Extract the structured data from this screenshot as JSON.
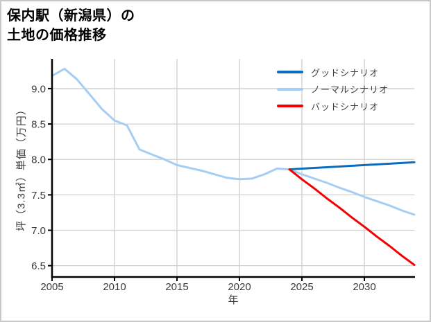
{
  "title": {
    "line1": "保内駅（新潟県）の",
    "line2": "土地の価格推移"
  },
  "colors": {
    "background": "#ffffff",
    "page_border": "#c8c8c8",
    "grid": "#cfcfcf",
    "spine": "#000000",
    "tick_label": "#3a3a3a",
    "legend_text": "#404040",
    "good_blue": "#0b6cbe",
    "normal_light_blue": "#a6cdf2",
    "bad_red": "#f40000"
  },
  "chart_data": {
    "type": "line",
    "title": "保内駅（新潟県）の土地の価格推移",
    "xlabel": "年",
    "ylabel": "坪（3.3㎡）単価（万円）",
    "xlim": [
      2005,
      2034
    ],
    "ylim": [
      6.35,
      9.42
    ],
    "xticks": [
      2005,
      2010,
      2015,
      2020,
      2025,
      2030
    ],
    "yticks": [
      6.5,
      7.0,
      7.5,
      8.0,
      8.5,
      9.0
    ],
    "grid": true,
    "legend_position": "upper-right",
    "series": [
      {
        "name": "グッドシナリオ",
        "slug": "good-scenario",
        "color": "#0b6cbe",
        "x": [
          2024,
          2025,
          2026,
          2027,
          2028,
          2029,
          2030,
          2031,
          2032,
          2033,
          2034
        ],
        "values": [
          7.86,
          7.87,
          7.88,
          7.89,
          7.9,
          7.91,
          7.92,
          7.93,
          7.94,
          7.95,
          7.96
        ]
      },
      {
        "name": "ノーマルシナリオ",
        "slug": "normal-scenario",
        "color": "#a6cdf2",
        "x": [
          2005,
          2006,
          2007,
          2008,
          2009,
          2010,
          2011,
          2012,
          2013,
          2014,
          2015,
          2016,
          2017,
          2018,
          2019,
          2020,
          2021,
          2022,
          2023,
          2024,
          2025,
          2026,
          2027,
          2028,
          2029,
          2030,
          2031,
          2032,
          2033,
          2034
        ],
        "values": [
          9.18,
          9.28,
          9.13,
          8.92,
          8.71,
          8.55,
          8.48,
          8.14,
          8.07,
          8.0,
          7.92,
          7.88,
          7.84,
          7.79,
          7.74,
          7.72,
          7.73,
          7.79,
          7.87,
          7.86,
          7.79,
          7.73,
          7.67,
          7.6,
          7.54,
          7.47,
          7.41,
          7.35,
          7.28,
          7.22
        ]
      },
      {
        "name": "バッドシナリオ",
        "slug": "bad-scenario",
        "color": "#f40000",
        "x": [
          2024,
          2025,
          2026,
          2027,
          2028,
          2029,
          2030,
          2031,
          2032,
          2033,
          2034
        ],
        "values": [
          7.86,
          7.72,
          7.59,
          7.45,
          7.32,
          7.18,
          7.05,
          6.91,
          6.78,
          6.64,
          6.51
        ]
      }
    ]
  }
}
